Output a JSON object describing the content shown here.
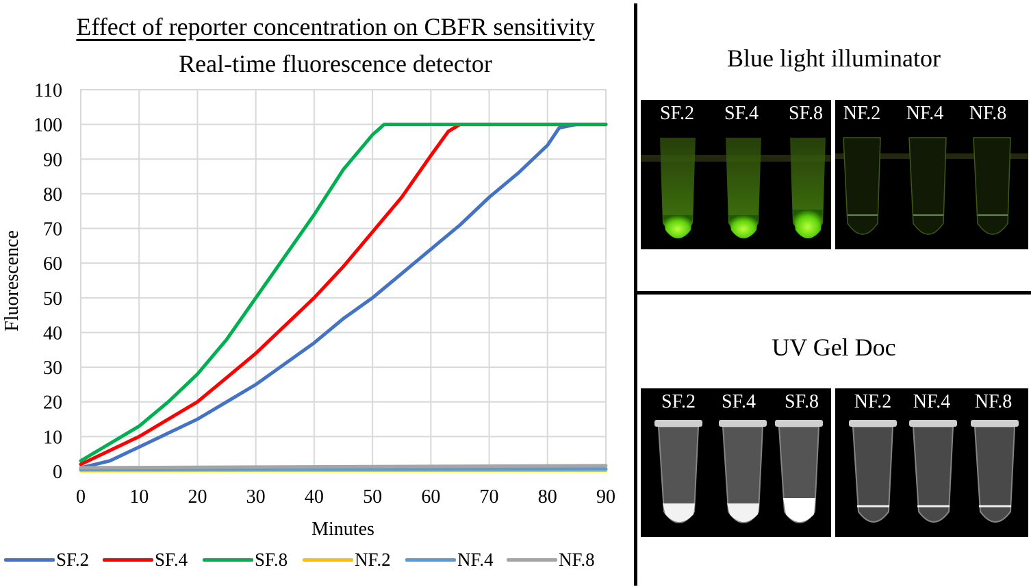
{
  "left_panel": {
    "title": "Effect of reporter concentration on CBFR sensitivity",
    "subtitle": "Real-time fluorescence detector"
  },
  "chart_data": {
    "type": "line",
    "title": "Effect of reporter concentration on CBFR sensitivity",
    "subtitle": "Real-time fluorescence detector",
    "xlabel": "Minutes",
    "ylabel": "Fluorescence",
    "xlim": [
      0,
      90
    ],
    "ylim": [
      0,
      110
    ],
    "xticks": [
      0,
      10,
      20,
      30,
      40,
      50,
      60,
      70,
      80,
      90
    ],
    "yticks": [
      0,
      10,
      20,
      30,
      40,
      50,
      60,
      70,
      80,
      90,
      100,
      110
    ],
    "grid": true,
    "legend_position": "bottom",
    "series": [
      {
        "name": "SF.2",
        "color": "#4472c4",
        "x": [
          0,
          5,
          10,
          15,
          20,
          25,
          30,
          35,
          40,
          45,
          50,
          55,
          60,
          65,
          70,
          75,
          80,
          82,
          85,
          90
        ],
        "y": [
          1,
          3,
          7,
          11,
          15,
          20,
          25,
          31,
          37,
          44,
          50,
          57,
          64,
          71,
          79,
          86,
          94,
          99,
          100,
          100
        ]
      },
      {
        "name": "SF.4",
        "color": "#ff0000",
        "x": [
          0,
          5,
          10,
          15,
          20,
          25,
          30,
          35,
          40,
          45,
          50,
          55,
          60,
          63,
          65,
          70,
          80,
          90
        ],
        "y": [
          2,
          6,
          10,
          15,
          20,
          27,
          34,
          42,
          50,
          59,
          69,
          79,
          91,
          98,
          100,
          100,
          100,
          100
        ]
      },
      {
        "name": "SF.8",
        "color": "#00b050",
        "x": [
          0,
          5,
          10,
          15,
          20,
          25,
          30,
          35,
          40,
          45,
          50,
          52,
          53,
          60,
          70,
          80,
          90
        ],
        "y": [
          3,
          8,
          13,
          20,
          28,
          38,
          50,
          62,
          74,
          87,
          97,
          100,
          100,
          100,
          100,
          100,
          100
        ]
      },
      {
        "name": "NF.2",
        "color": "#ffc000",
        "x": [
          0,
          30,
          60,
          90
        ],
        "y": [
          0.2,
          0.3,
          0.3,
          0.3
        ]
      },
      {
        "name": "NF.4",
        "color": "#5b9bd5",
        "x": [
          0,
          30,
          60,
          90
        ],
        "y": [
          0.5,
          0.6,
          0.6,
          0.7
        ]
      },
      {
        "name": "NF.8",
        "color": "#a5a5a5",
        "x": [
          0,
          30,
          60,
          90
        ],
        "y": [
          1.0,
          1.2,
          1.4,
          1.6
        ]
      }
    ]
  },
  "right_panel": {
    "blue_light": {
      "title": "Blue light illuminator",
      "left_photo_labels": [
        "SF.2",
        "SF.4",
        "SF.8"
      ],
      "right_photo_labels": [
        "NF.2",
        "NF.4",
        "NF.8"
      ]
    },
    "uv_gel": {
      "title": "UV Gel Doc",
      "left_photo_labels": [
        "SF.2",
        "SF.4",
        "SF.8"
      ],
      "right_photo_labels": [
        "NF.2",
        "NF.4",
        "NF.8"
      ]
    }
  }
}
